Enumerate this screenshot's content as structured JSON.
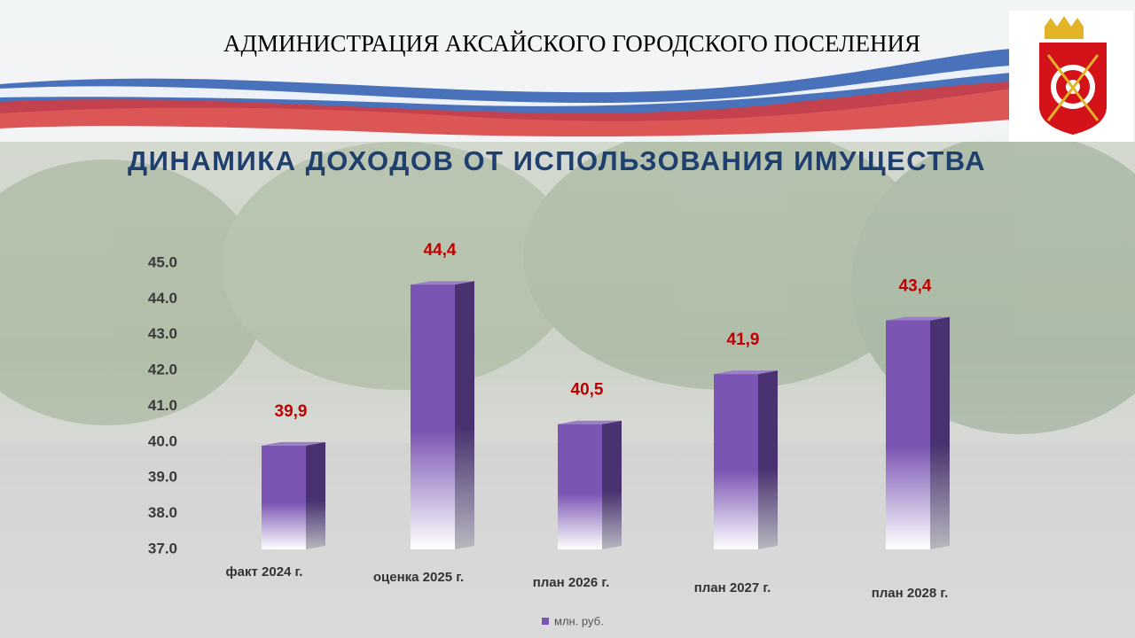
{
  "header": {
    "title": "АДМИНИСТРАЦИЯ АКСАЙСКОГО ГОРОДСКОГО ПОСЕЛЕНИЯ"
  },
  "chart_data": {
    "type": "bar",
    "title": "ДИНАМИКА ДОХОДОВ ОТ ИСПОЛЬЗОВАНИЯ ИМУЩЕСТВА",
    "categories": [
      "факт 2024 г.",
      "оценка 2025 г.",
      "план 2026 г.",
      "план 2027 г.",
      "план 2028 г."
    ],
    "series": [
      {
        "name": "млн. руб.",
        "color": "#7b55b3",
        "values": [
          39.9,
          44.4,
          40.5,
          41.9,
          43.4
        ],
        "value_labels": [
          "39,9",
          "44,4",
          "40,5",
          "41,9",
          "43,4"
        ]
      }
    ],
    "ylim": [
      37,
      45
    ],
    "yticks": [
      {
        "value": 37,
        "label": "37.0"
      },
      {
        "value": 38,
        "label": "38.0"
      },
      {
        "value": 39,
        "label": "39.0"
      },
      {
        "value": 40,
        "label": "40.0"
      },
      {
        "value": 41,
        "label": "41.0"
      },
      {
        "value": 42,
        "label": "42.0"
      },
      {
        "value": 43,
        "label": "43.0"
      },
      {
        "value": 44,
        "label": "44.0"
      },
      {
        "value": 45,
        "label": "45.0"
      }
    ],
    "grid": false,
    "legend": "bottom"
  }
}
